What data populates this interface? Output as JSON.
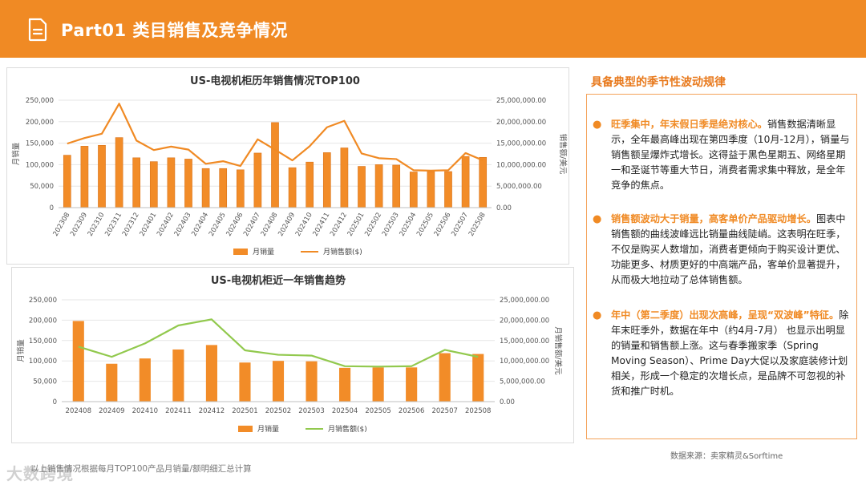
{
  "header": {
    "title": "Part01 类目销售及竞争情况"
  },
  "right": {
    "title": "具备典型的季节性波动规律",
    "bullets": [
      {
        "highlight": "旺季集中，年末假日季是绝对核心。",
        "text": "销售数据清晰显示，全年最高峰出现在第四季度（10月-12月），销量与销售额呈爆炸式增长。这得益于黑色星期五、网络星期一和圣诞节等重大节日，消费者需求集中释放，是全年竞争的焦点。"
      },
      {
        "highlight": "销售额波动大于销量，高客单价产品驱动增长。",
        "text": "图表中销售额的曲线波峰远比销量曲线陡峭。这表明在旺季，不仅是购买人数增加，消费者更倾向于购买设计更优、功能更多、材质更好的中高端产品，客单价显著提升，从而极大地拉动了总体销售额。"
      },
      {
        "highlight": "年中（第二季度）出现次高峰，呈现“双波峰”特征。",
        "text": "除年末旺季外，数据在年中（约4月-7月） 也显示出明显的销量和销售额上涨。这与春季搬家季（Spring Moving Season）、Prime Day大促以及家庭装修计划相关，形成一个稳定的次增长点，是品牌不可忽视的补货和推广时机。"
      }
    ]
  },
  "footer": {
    "source": "数据来源：卖家精灵&Sorftime",
    "note": "以上销售情况根据每月TOP100产品月销量/额明细汇总计算",
    "watermark": "大数跨境"
  },
  "colors": {
    "accent": "#f08a24",
    "bar": "#f28c28",
    "line_orange": "#f08a24",
    "line_green": "#92c94e"
  },
  "chart_data": [
    {
      "type": "bar",
      "title": "US-电视机柜历年销售情况TOP100",
      "categories": [
        "202308",
        "202309",
        "202310",
        "202311",
        "202312",
        "202401",
        "202402",
        "202403",
        "202404",
        "202405",
        "202406",
        "202407",
        "202408",
        "202409",
        "202410",
        "202411",
        "202412",
        "202501",
        "202502",
        "202503",
        "202504",
        "202505",
        "202506",
        "202507",
        "202508"
      ],
      "series": [
        {
          "name": "月销量",
          "type": "bar",
          "axis": "left",
          "values": [
            122000,
            143000,
            145000,
            163000,
            116000,
            107000,
            116000,
            113000,
            91000,
            91000,
            88000,
            127000,
            198000,
            93000,
            106000,
            128000,
            139000,
            96000,
            100000,
            99000,
            83000,
            84000,
            84000,
            119000,
            117000
          ]
        },
        {
          "name": "月销售额($)",
          "type": "line",
          "axis": "right",
          "values": [
            14900000,
            16200000,
            17200000,
            24200000,
            15600000,
            13400000,
            14200000,
            13500000,
            10200000,
            10800000,
            9700000,
            15900000,
            13500000,
            11000000,
            14300000,
            18700000,
            20200000,
            12600000,
            11500000,
            11300000,
            8700000,
            8600000,
            8700000,
            12700000,
            11000000
          ]
        }
      ],
      "ylabel": "月销量",
      "y2label": "销售额/美元",
      "ylim": [
        0,
        250000
      ],
      "y2lim": [
        0,
        25000000
      ],
      "yticks": [
        "0",
        "50,000",
        "100,000",
        "150,000",
        "200,000",
        "250,000"
      ],
      "y2ticks": [
        "0.00",
        "5,000,000.00",
        "10,000,000.00",
        "15,000,000.00",
        "20,000,000.00",
        "25,000,000.00"
      ],
      "legend_position": "bottom",
      "grid": true
    },
    {
      "type": "bar",
      "title": "US-电视机柜近一年销售趋势",
      "categories": [
        "202408",
        "202409",
        "202410",
        "202411",
        "202412",
        "202501",
        "202502",
        "202503",
        "202504",
        "202505",
        "202506",
        "202507",
        "202508"
      ],
      "series": [
        {
          "name": "月销量",
          "type": "bar",
          "axis": "left",
          "values": [
            198000,
            93000,
            106000,
            128000,
            139000,
            96000,
            100000,
            99000,
            83000,
            84000,
            84000,
            119000,
            117000
          ]
        },
        {
          "name": "月销售额($)",
          "type": "line",
          "axis": "right",
          "values": [
            13500000,
            11000000,
            14300000,
            18700000,
            20200000,
            12600000,
            11500000,
            11300000,
            8700000,
            8600000,
            8700000,
            12700000,
            11000000
          ]
        }
      ],
      "ylabel": "月销量",
      "y2label": "月销售额/美元",
      "ylim": [
        0,
        250000
      ],
      "y2lim": [
        0,
        25000000
      ],
      "yticks": [
        "0",
        "50,000",
        "100,000",
        "150,000",
        "200,000",
        "250,000"
      ],
      "y2ticks": [
        "0.00",
        "5,000,000.00",
        "10,000,000.00",
        "15,000,000.00",
        "20,000,000.00",
        "25,000,000.00"
      ],
      "legend_position": "bottom",
      "grid": true
    }
  ]
}
